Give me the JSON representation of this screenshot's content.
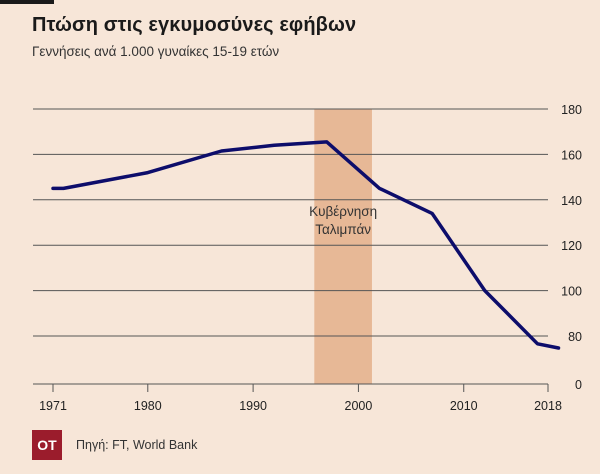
{
  "header": {
    "title": "Πτώση στις εγκυμοσύνες εφήβων",
    "subtitle": "Γεννήσεις ανά 1.000 γυναίκες 15-19 ετών"
  },
  "footer": {
    "logo_text": "OT",
    "source": "Πηγή: FT, World Bank"
  },
  "colors": {
    "background": "#f7e6d8",
    "line": "#0d0d6b",
    "band": "#e7b896",
    "grid": "#555555",
    "logo": "#9b1c2c"
  },
  "chart_data": {
    "type": "line",
    "title": "Πτώση στις εγκυμοσύνες εφήβων",
    "subtitle": "Γεννήσεις ανά 1.000 γυναίκες 15-19 ετών",
    "xlabel": "",
    "ylabel": "",
    "x_ticks": [
      1971,
      1980,
      1990,
      2000,
      2010,
      2018
    ],
    "y_ticks": [
      0,
      80,
      100,
      120,
      140,
      160,
      180
    ],
    "y_axis_note": "axis shows a break between 0 and 80",
    "grid": true,
    "series": [
      {
        "x": [
          1971,
          1972,
          1980,
          1987,
          1992,
          1997,
          2002,
          2007,
          2012,
          2017,
          2019
        ],
        "y": [
          145,
          145,
          152,
          161.5,
          164,
          165.5,
          145,
          134,
          100,
          67,
          60
        ]
      }
    ],
    "annotations": [
      {
        "label_line1": "Κυβέρνηση",
        "label_line2": "Ταλιμπάν",
        "x_start": 1996,
        "x_end": 2001
      }
    ]
  }
}
